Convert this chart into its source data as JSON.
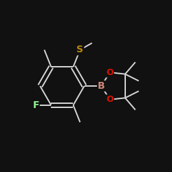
{
  "background_color": "#111111",
  "bond_color": "#d8d8d8",
  "atom_colors": {
    "S": "#b8860b",
    "F": "#90ee90",
    "B": "#cc8877",
    "O": "#dd1100"
  },
  "atom_fontsizes": {
    "S": 10,
    "F": 10,
    "B": 10,
    "O": 9
  },
  "bond_lw": 1.4,
  "figsize": [
    2.5,
    2.5
  ],
  "dpi": 100
}
